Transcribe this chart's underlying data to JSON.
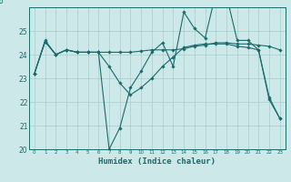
{
  "xlabel": "Humidex (Indice chaleur)",
  "x": [
    0,
    1,
    2,
    3,
    4,
    5,
    6,
    7,
    8,
    9,
    10,
    11,
    12,
    13,
    14,
    15,
    16,
    17,
    18,
    19,
    20,
    21,
    22,
    23
  ],
  "series1": [
    23.2,
    24.6,
    24.0,
    24.2,
    24.1,
    24.1,
    24.1,
    20.0,
    20.9,
    22.6,
    23.3,
    24.1,
    24.5,
    23.5,
    25.8,
    25.1,
    24.7,
    26.6,
    26.5,
    24.6,
    24.6,
    24.2,
    22.1,
    21.3
  ],
  "series2": [
    23.2,
    24.55,
    24.0,
    24.2,
    24.1,
    24.1,
    24.1,
    24.1,
    24.1,
    24.1,
    24.15,
    24.2,
    24.2,
    24.2,
    24.25,
    24.35,
    24.4,
    24.5,
    24.5,
    24.45,
    24.45,
    24.4,
    24.35,
    24.2
  ],
  "series3": [
    23.2,
    24.55,
    24.0,
    24.2,
    24.1,
    24.1,
    24.1,
    23.5,
    22.8,
    22.3,
    22.6,
    23.0,
    23.5,
    23.9,
    24.3,
    24.4,
    24.45,
    24.45,
    24.45,
    24.35,
    24.3,
    24.2,
    22.2,
    21.3
  ],
  "ylim": [
    20,
    26
  ],
  "yticks": [
    20,
    21,
    22,
    23,
    24,
    25
  ],
  "ytick_labels": [
    "20",
    "21",
    "22",
    "23",
    "24",
    "25"
  ],
  "bg_color": "#cce8e8",
  "grid_color": "#aacccc",
  "line_color": "#1a6b6b",
  "markersize": 1.8,
  "linewidth": 0.8
}
